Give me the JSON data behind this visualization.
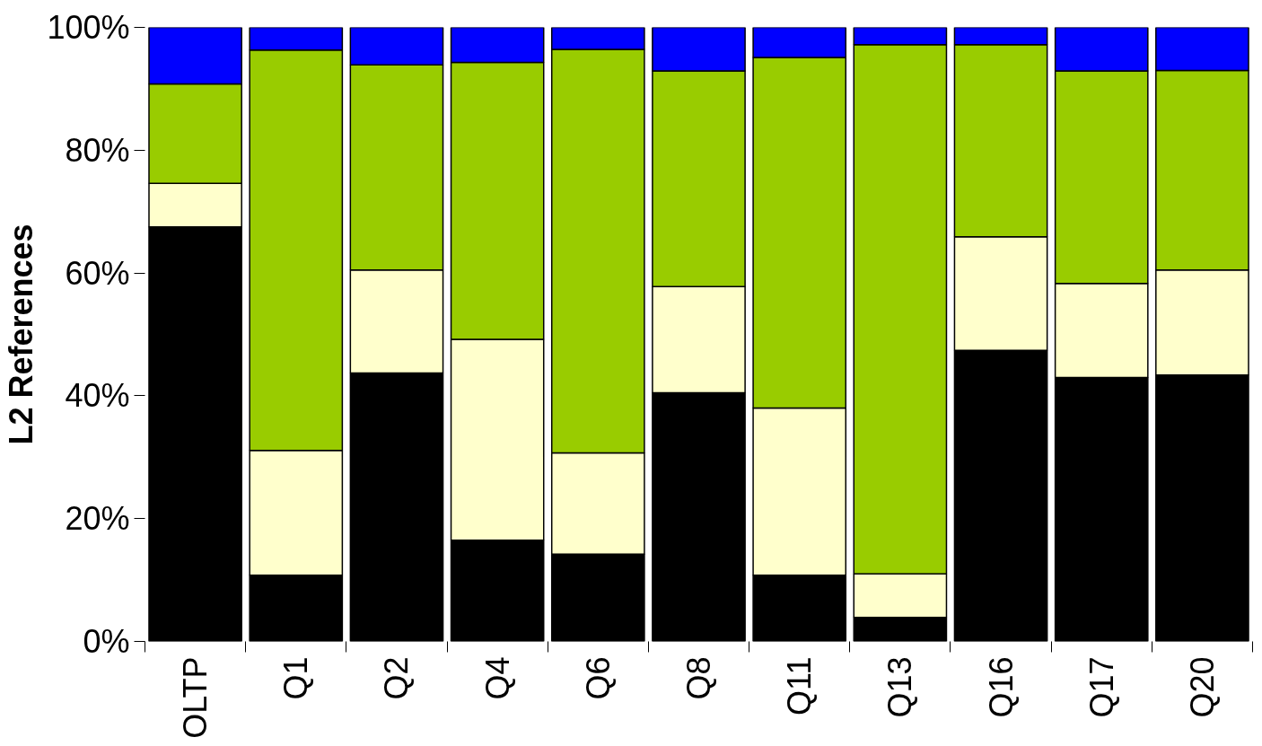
{
  "chart_data": {
    "type": "bar",
    "stacked": true,
    "ylabel": "L2 References",
    "categories": [
      "OLTP",
      "Q1",
      "Q2",
      "Q4",
      "Q6",
      "Q8",
      "Q11",
      "Q13",
      "Q16",
      "Q17",
      "Q20"
    ],
    "series": [
      {
        "color": "#000000",
        "values": [
          67.5,
          10.8,
          43.7,
          16.5,
          14.2,
          40.5,
          10.8,
          3.9,
          47.4,
          43.0,
          43.4
        ]
      },
      {
        "color": "#ffffcc",
        "values": [
          7.1,
          20.3,
          16.8,
          32.7,
          16.5,
          17.3,
          27.2,
          7.1,
          18.5,
          15.3,
          17.1
        ]
      },
      {
        "color": "#99cc00",
        "values": [
          16.2,
          65.2,
          33.4,
          45.1,
          65.7,
          35.1,
          57.1,
          86.2,
          31.3,
          34.6,
          32.5
        ]
      },
      {
        "color": "#0000ff",
        "values": [
          9.2,
          3.7,
          6.1,
          5.7,
          3.6,
          7.1,
          4.9,
          2.8,
          2.8,
          7.1,
          7.0
        ]
      }
    ],
    "ylim": [
      0,
      100
    ],
    "yticks": [
      {
        "value": 0,
        "label": "0%"
      },
      {
        "value": 20,
        "label": "20%"
      },
      {
        "value": 40,
        "label": "40%"
      },
      {
        "value": 60,
        "label": "60%"
      },
      {
        "value": 80,
        "label": "80%"
      },
      {
        "value": 100,
        "label": "100%"
      }
    ],
    "grid": false
  }
}
